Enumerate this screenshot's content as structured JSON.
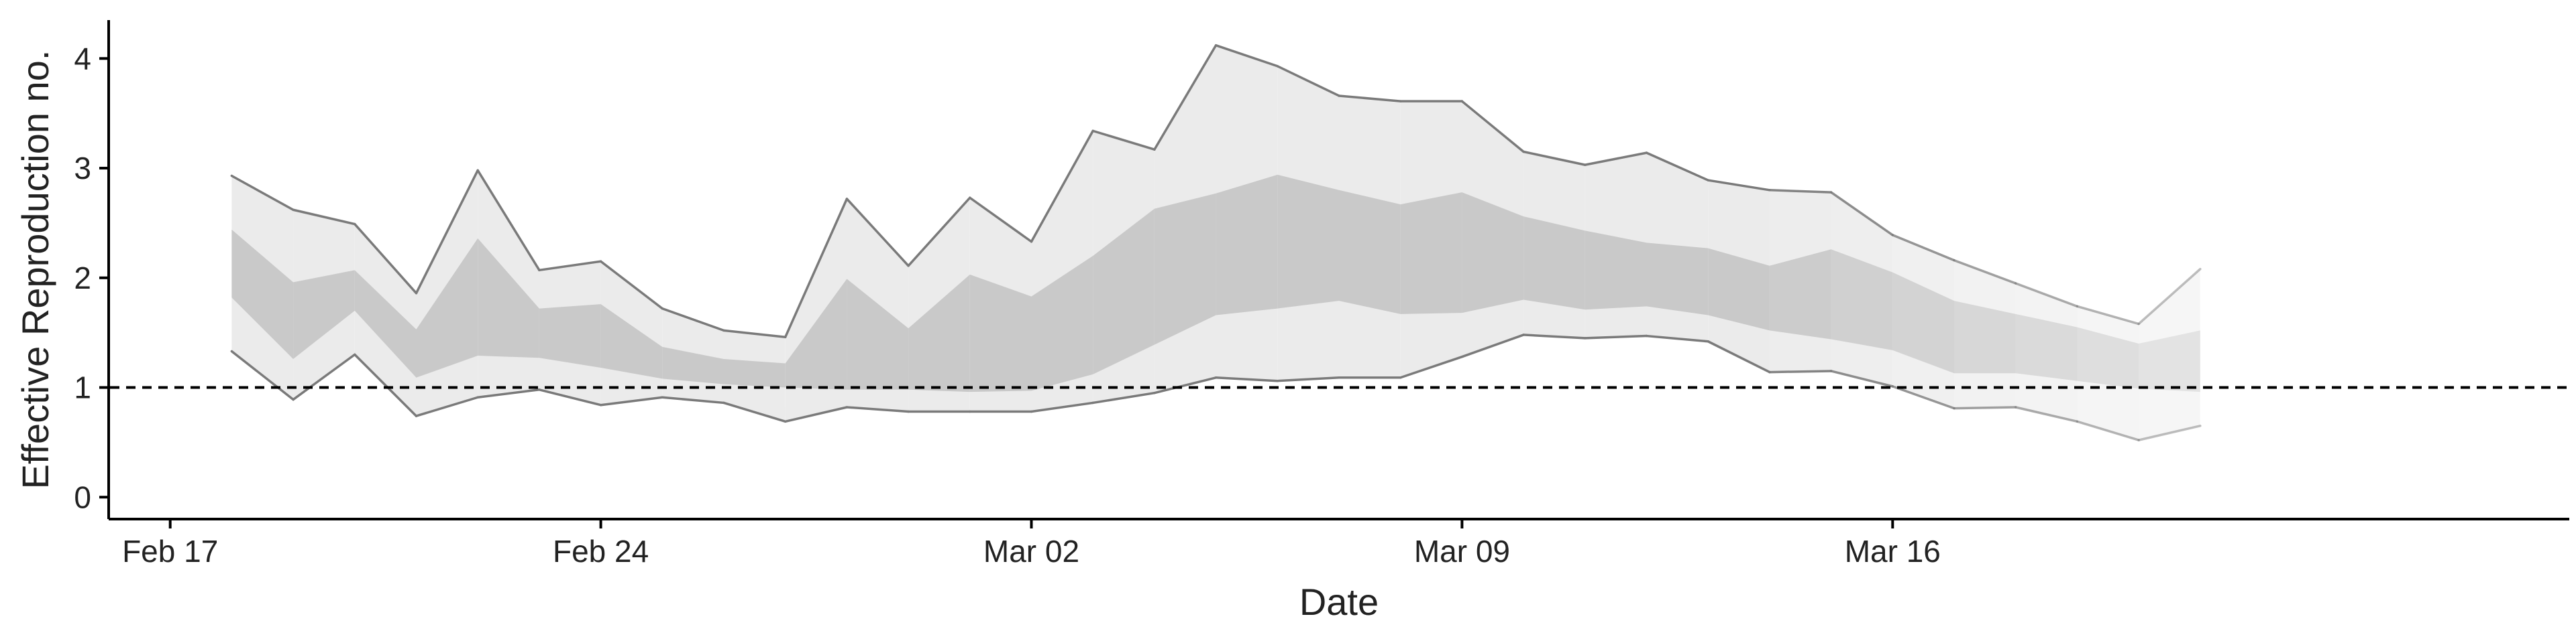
{
  "chart_data": {
    "type": "area",
    "title": "",
    "xlabel": "Date",
    "ylabel": "Effective Reproduction no.",
    "x_ticks": [
      "Feb 17",
      "Feb 24",
      "Mar 02",
      "Mar 09",
      "Mar 16"
    ],
    "y_ticks": [
      "0",
      "1",
      "2",
      "3",
      "4"
    ],
    "xlim": [
      "2020-02-16",
      "2020-03-27"
    ],
    "ylim": [
      -0.2,
      4.35
    ],
    "reference_line": {
      "y": 1,
      "style": "dashed"
    },
    "dates": [
      "2020-02-18",
      "2020-02-19",
      "2020-02-20",
      "2020-02-21",
      "2020-02-22",
      "2020-02-23",
      "2020-02-24",
      "2020-02-25",
      "2020-02-26",
      "2020-02-27",
      "2020-02-28",
      "2020-02-29",
      "2020-03-01",
      "2020-03-02",
      "2020-03-03",
      "2020-03-04",
      "2020-03-05",
      "2020-03-06",
      "2020-03-07",
      "2020-03-08",
      "2020-03-09",
      "2020-03-10",
      "2020-03-11",
      "2020-03-12",
      "2020-03-13",
      "2020-03-14",
      "2020-03-15",
      "2020-03-16",
      "2020-03-17",
      "2020-03-18",
      "2020-03-19",
      "2020-03-20",
      "2020-03-21"
    ],
    "series": [
      {
        "upper_90": [
          2.93,
          2.62,
          2.49,
          1.86,
          2.98,
          2.07,
          2.15,
          1.72,
          1.52,
          1.46,
          2.72,
          2.11,
          2.73,
          2.33,
          3.34,
          3.17,
          4.12,
          3.93,
          3.66,
          3.61,
          3.61,
          3.15,
          3.03,
          3.14,
          2.89,
          2.8,
          2.78,
          2.39,
          2.16,
          1.95,
          1.74,
          1.58,
          2.08
        ]
      },
      {
        "upper_50": [
          2.44,
          1.96,
          2.07,
          1.53,
          2.36,
          1.72,
          1.76,
          1.37,
          1.26,
          1.22,
          1.99,
          1.54,
          2.03,
          1.83,
          2.2,
          2.63,
          2.77,
          2.94,
          2.8,
          2.67,
          2.78,
          2.56,
          2.43,
          2.32,
          2.27,
          2.11,
          2.26,
          2.05,
          1.79,
          1.67,
          1.55,
          1.4,
          1.52
        ]
      },
      {
        "lower_50": [
          1.82,
          1.26,
          1.7,
          1.09,
          1.29,
          1.27,
          1.18,
          1.08,
          1.03,
          1.0,
          0.98,
          0.98,
          0.96,
          0.97,
          1.12,
          1.39,
          1.66,
          1.72,
          1.79,
          1.67,
          1.68,
          1.8,
          1.71,
          1.74,
          1.66,
          1.52,
          1.44,
          1.34,
          1.13,
          1.13,
          1.06,
          0.99,
          0.96
        ]
      },
      {
        "lower_90": [
          1.33,
          0.89,
          1.3,
          0.74,
          0.91,
          0.98,
          0.84,
          0.91,
          0.86,
          0.69,
          0.82,
          0.78,
          0.78,
          0.78,
          0.86,
          0.95,
          1.09,
          1.06,
          1.09,
          1.09,
          1.28,
          1.48,
          1.45,
          1.47,
          1.42,
          1.14,
          1.15,
          1.01,
          0.81,
          0.82,
          0.69,
          0.52,
          0.65
        ]
      }
    ],
    "colors": {
      "band_90": "#ebebeb",
      "band_50": "#c9c9c9",
      "bound_line": "#7a7a7a",
      "reference": "#000000",
      "axis": "#000000"
    }
  }
}
